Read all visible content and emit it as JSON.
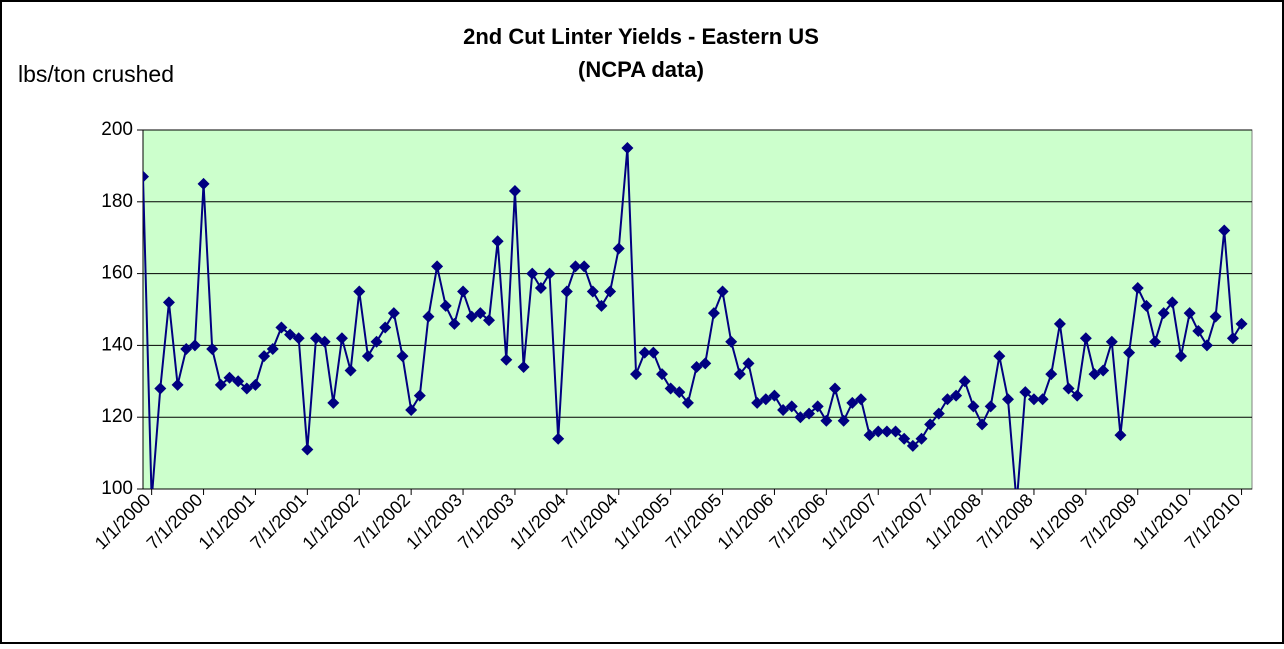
{
  "chart_data": {
    "type": "line",
    "title": "2nd Cut Linter Yields - Eastern US",
    "subtitle": "(NCPA data)",
    "y_label": "lbs/ton crushed",
    "color": "#000080",
    "background": "#ccffcc",
    "grid": true,
    "ylim": [
      100,
      200
    ],
    "yticks": [
      100,
      120,
      140,
      160,
      180,
      200
    ],
    "categories": [
      null,
      "1/1/2000",
      null,
      null,
      null,
      null,
      null,
      "7/1/2000",
      null,
      null,
      null,
      null,
      null,
      "1/1/2001",
      null,
      null,
      null,
      null,
      null,
      "7/1/2001",
      null,
      null,
      null,
      null,
      null,
      "1/1/2002",
      null,
      null,
      null,
      null,
      null,
      "7/1/2002",
      null,
      null,
      null,
      null,
      null,
      "1/1/2003",
      null,
      null,
      null,
      null,
      null,
      "7/1/2003",
      null,
      null,
      null,
      null,
      null,
      "1/1/2004",
      null,
      null,
      null,
      null,
      null,
      "7/1/2004",
      null,
      null,
      null,
      null,
      null,
      "1/1/2005",
      null,
      null,
      null,
      null,
      null,
      "7/1/2005",
      null,
      null,
      null,
      null,
      null,
      "1/1/2006",
      null,
      null,
      null,
      null,
      null,
      "7/1/2006",
      null,
      null,
      null,
      null,
      null,
      "1/1/2007",
      null,
      null,
      null,
      null,
      null,
      "7/1/2007",
      null,
      null,
      null,
      null,
      null,
      "1/1/2008",
      null,
      null,
      null,
      null,
      null,
      "7/1/2008",
      null,
      null,
      null,
      null,
      null,
      "1/1/2009",
      null,
      null,
      null,
      null,
      null,
      "7/1/2009",
      null,
      null,
      null,
      null,
      null,
      "1/1/2010",
      null,
      null,
      null,
      null,
      null,
      "7/1/2010"
    ],
    "values": [
      187,
      97,
      128,
      152,
      129,
      139,
      140,
      185,
      139,
      129,
      131,
      130,
      128,
      129,
      137,
      139,
      145,
      143,
      142,
      111,
      142,
      141,
      124,
      142,
      133,
      155,
      137,
      141,
      145,
      149,
      137,
      122,
      126,
      148,
      162,
      151,
      146,
      155,
      148,
      149,
      147,
      169,
      136,
      183,
      134,
      160,
      156,
      160,
      114,
      155,
      162,
      162,
      155,
      151,
      155,
      167,
      195,
      132,
      138,
      138,
      132,
      128,
      127,
      124,
      134,
      135,
      149,
      155,
      141,
      132,
      135,
      124,
      125,
      126,
      122,
      123,
      120,
      121,
      123,
      119,
      128,
      119,
      124,
      125,
      115,
      116,
      116,
      116,
      114,
      112,
      114,
      118,
      121,
      125,
      126,
      130,
      123,
      118,
      123,
      137,
      125,
      96,
      127,
      125,
      125,
      132,
      146,
      128,
      126,
      142,
      132,
      133,
      141,
      115,
      138,
      156,
      151,
      141,
      149,
      152,
      137,
      149,
      144,
      140,
      148,
      172,
      142,
      146
    ]
  }
}
